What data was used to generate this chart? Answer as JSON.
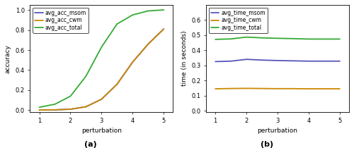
{
  "left": {
    "title": "(a)",
    "xlabel": "perturbation",
    "ylabel": "accuracy",
    "xlim": [
      0.7,
      5.3
    ],
    "ylim": [
      -0.02,
      1.05
    ],
    "xticks": [
      1,
      2,
      3,
      4,
      5
    ],
    "yticks": [
      0.0,
      0.2,
      0.4,
      0.6,
      0.8,
      1.0
    ],
    "lines": {
      "avg_acc_msom": {
        "color": "#5555bb",
        "x": [
          1.0,
          1.5,
          2.0,
          2.5,
          3.0,
          3.5,
          4.0,
          4.5,
          5.0
        ],
        "y": [
          0.002,
          0.004,
          0.01,
          0.035,
          0.11,
          0.26,
          0.48,
          0.66,
          0.81
        ]
      },
      "avg_acc_cwm": {
        "color": "#cc8800",
        "x": [
          1.0,
          1.5,
          2.0,
          2.5,
          3.0,
          3.5,
          4.0,
          4.5,
          5.0
        ],
        "y": [
          0.002,
          0.004,
          0.01,
          0.035,
          0.11,
          0.26,
          0.48,
          0.66,
          0.81
        ]
      },
      "avg_acc_total": {
        "color": "#33aa33",
        "x": [
          1.0,
          1.5,
          2.0,
          2.5,
          3.0,
          3.5,
          4.0,
          4.5,
          5.0
        ],
        "y": [
          0.03,
          0.06,
          0.14,
          0.34,
          0.63,
          0.86,
          0.95,
          0.99,
          1.0
        ]
      }
    }
  },
  "right": {
    "title": "(b)",
    "xlabel": "perturbation",
    "ylabel": "time (in seconds)",
    "xlim": [
      0.7,
      5.3
    ],
    "ylim": [
      -0.01,
      0.7
    ],
    "xticks": [
      1,
      2,
      3,
      4,
      5
    ],
    "yticks": [
      0.0,
      0.1,
      0.2,
      0.3,
      0.4,
      0.5,
      0.6
    ],
    "lines": {
      "avg_time_msom": {
        "color": "#5555bb",
        "x": [
          1.0,
          1.5,
          2.0,
          2.5,
          3.0,
          3.5,
          4.0,
          4.5,
          5.0
        ],
        "y": [
          0.325,
          0.328,
          0.34,
          0.335,
          0.332,
          0.33,
          0.328,
          0.328,
          0.328
        ]
      },
      "avg_time_cwm": {
        "color": "#cc8800",
        "x": [
          1.0,
          1.5,
          2.0,
          2.5,
          3.0,
          3.5,
          4.0,
          4.5,
          5.0
        ],
        "y": [
          0.145,
          0.147,
          0.148,
          0.147,
          0.146,
          0.146,
          0.145,
          0.145,
          0.145
        ]
      },
      "avg_time_total": {
        "color": "#33aa33",
        "x": [
          1.0,
          1.5,
          2.0,
          2.5,
          3.0,
          3.5,
          4.0,
          4.5,
          5.0
        ],
        "y": [
          0.472,
          0.475,
          0.487,
          0.482,
          0.479,
          0.477,
          0.474,
          0.474,
          0.474
        ]
      }
    }
  },
  "bg_color": "#ffffff",
  "plot_bg_color": "#ffffff",
  "line_width": 1.3,
  "legend_fontsize": 5.5,
  "axis_fontsize": 6.5,
  "title_fontsize": 8,
  "tick_fontsize": 6.0
}
